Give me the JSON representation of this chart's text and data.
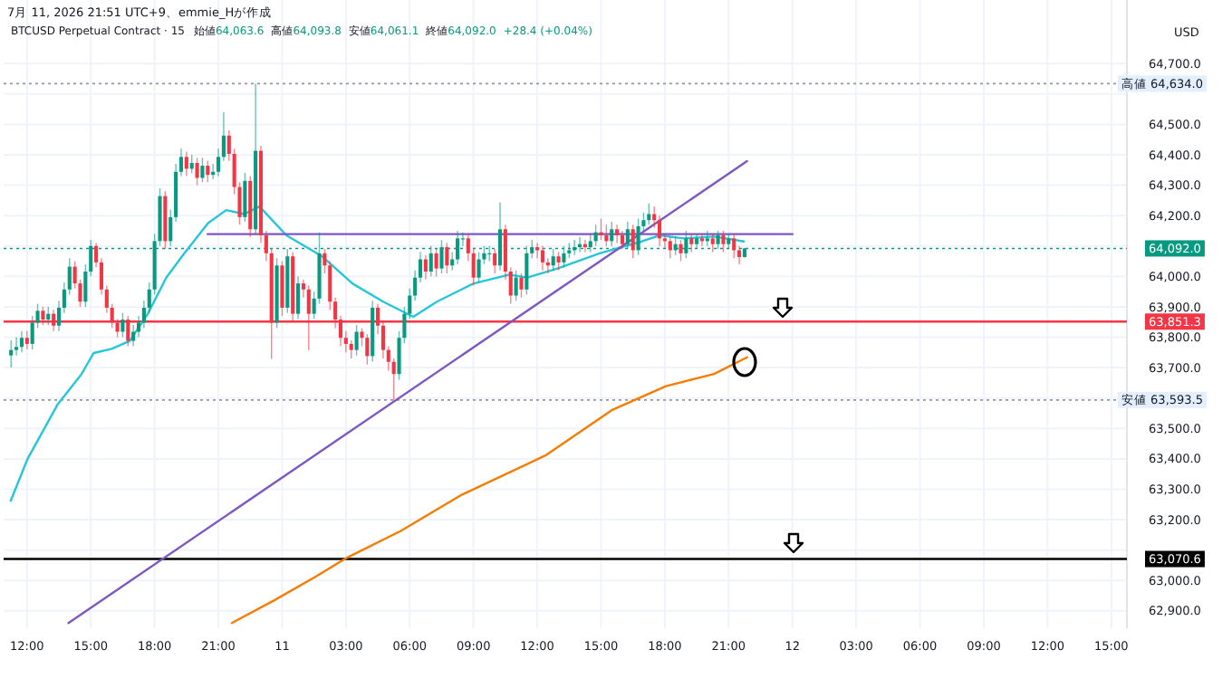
{
  "chart_data": {
    "type": "candlestick",
    "title": "7月 11, 2026 21:51 UTC+9、emmie_Hが作成",
    "subtitle": "BTCUSD Perpetual Contract · 15",
    "annotations": [
      "始値64,063.6",
      "高値64,093.8",
      "安値64,061.1",
      "終値64,092.0",
      "+28.4 (+0.04%)"
    ],
    "ylabel": "USD",
    "xlim": [
      "2026-07-10T10:54",
      "2026-07-12T15:44"
    ],
    "xticks": [
      {
        "value": "2026-07-10T12:00",
        "label": "12:00"
      },
      {
        "value": "2026-07-10T15:00",
        "label": "15:00"
      },
      {
        "value": "2026-07-10T18:00",
        "label": "18:00"
      },
      {
        "value": "2026-07-10T21:00",
        "label": "21:00"
      },
      {
        "value": "2026-07-11T00:00",
        "label": "11"
      },
      {
        "value": "2026-07-11T03:00",
        "label": "03:00"
      },
      {
        "value": "2026-07-11T06:00",
        "label": "06:00"
      },
      {
        "value": "2026-07-11T09:00",
        "label": "09:00"
      },
      {
        "value": "2026-07-11T12:00",
        "label": "12:00"
      },
      {
        "value": "2026-07-11T15:00",
        "label": "15:00"
      },
      {
        "value": "2026-07-11T18:00",
        "label": "18:00"
      },
      {
        "value": "2026-07-11T21:00",
        "label": "21:00"
      },
      {
        "value": "2026-07-12T00:00",
        "label": "12"
      },
      {
        "value": "2026-07-12T03:00",
        "label": "03:00"
      },
      {
        "value": "2026-07-12T06:00",
        "label": "06:00"
      },
      {
        "value": "2026-07-12T09:00",
        "label": "09:00"
      },
      {
        "value": "2026-07-12T12:00",
        "label": "12:00"
      },
      {
        "value": "2026-07-12T15:00",
        "label": "15:00"
      }
    ],
    "ylim": [
      62843,
      64909
    ],
    "yticks": [
      {
        "value": 62900,
        "label": "62,900.0"
      },
      {
        "value": 63000,
        "label": "63,000.0"
      },
      {
        "value": 63100,
        "label": null
      },
      {
        "value": 63200,
        "label": "63,200.0"
      },
      {
        "value": 63300,
        "label": "63,300.0"
      },
      {
        "value": 63400,
        "label": "63,400.0"
      },
      {
        "value": 63500,
        "label": "63,500.0"
      },
      {
        "value": 63600,
        "label": null
      },
      {
        "value": 63700,
        "label": "63,700.0"
      },
      {
        "value": 63800,
        "label": "63,800.0"
      },
      {
        "value": 63900,
        "label": "63,900.0"
      },
      {
        "value": 64000,
        "label": "64,000.0"
      },
      {
        "value": 64100,
        "label": null
      },
      {
        "value": 64200,
        "label": "64,200.0"
      },
      {
        "value": 64300,
        "label": "64,300.0"
      },
      {
        "value": 64400,
        "label": "64,400.0"
      },
      {
        "value": 64500,
        "label": "64,500.0"
      },
      {
        "value": 64600,
        "label": null
      },
      {
        "value": 64700,
        "label": "64,700.0"
      }
    ],
    "grid": true,
    "colors": [
      "#089981",
      "#089981",
      "#089981",
      "#f23645",
      "#089981",
      "#089981",
      "#f23645",
      "#089981",
      "#f23645",
      "#089981",
      "#089981",
      "#089981",
      "#f23645",
      "#f23645",
      "#089981",
      "#089981",
      "#f23645",
      "#f23645",
      "#f23645",
      "#f23645",
      "#f23645",
      "#089981",
      "#f23645",
      "#089981",
      "#089981",
      "#089981",
      "#089981",
      "#089981",
      "#089981",
      "#f23645",
      "#089981",
      "#089981",
      "#089981",
      "#f23645",
      "#089981",
      "#f23645",
      "#089981",
      "#f23645",
      "#089981",
      "#089981",
      "#089981",
      "#f23645",
      "#f23645",
      "#f23645",
      "#089981",
      "#f23645",
      "#089981",
      "#f23645",
      "#f23645",
      "#f23645",
      "#089981",
      "#f23645",
      "#089981",
      "#f23645",
      "#089981",
      "#f23645",
      "#f23645",
      "#089981",
      "#089981",
      "#f23645",
      "#f23645",
      "#f23645",
      "#f23645",
      "#f23645",
      "#f23645",
      "#089981",
      "#f23645",
      "#f23645",
      "#089981",
      "#f23645",
      "#f23645",
      "#f23645",
      "#f23645",
      "#089981",
      "#089981",
      "#089981",
      "#089981",
      "#089981",
      "#f23645",
      "#089981",
      "#f23645",
      "#089981",
      "#f23645",
      "#089981",
      "#089981",
      "#089981",
      "#f23645",
      "#f23645",
      "#089981",
      "#089981",
      "#089981",
      "#f23645",
      "#089981",
      "#f23645",
      "#f23645",
      "#089981",
      "#f23645",
      "#089981",
      "#089981",
      "#f23645",
      "#f23645",
      "#f23645",
      "#089981",
      "#f23645",
      "#089981",
      "#089981",
      "#089981",
      "#089981",
      "#f23645",
      "#089981",
      "#089981",
      "#f23645",
      "#f23645",
      "#089981",
      "#f23645",
      "#f23645",
      "#089981",
      "#f23645",
      "#089981",
      "#089981",
      "#089981",
      "#f23645",
      "#f23645",
      "#f23645",
      "#f23645",
      "#089981",
      "#f23645",
      "#089981",
      "#f23645",
      "#089981",
      "#f23645",
      "#089981",
      "#f23645",
      "#089981",
      "#f23645",
      "#089981",
      "#f23645",
      "#f23645",
      "#089981"
    ],
    "x": [
      "2026-07-10T11:15",
      "2026-07-10T11:30",
      "2026-07-10T11:45",
      "2026-07-10T12:00",
      "2026-07-10T12:15",
      "2026-07-10T12:30",
      "2026-07-10T12:45",
      "2026-07-10T13:00",
      "2026-07-10T13:15",
      "2026-07-10T13:30",
      "2026-07-10T13:45",
      "2026-07-10T14:00",
      "2026-07-10T14:15",
      "2026-07-10T14:30",
      "2026-07-10T14:45",
      "2026-07-10T15:00",
      "2026-07-10T15:15",
      "2026-07-10T15:30",
      "2026-07-10T15:45",
      "2026-07-10T16:00",
      "2026-07-10T16:15",
      "2026-07-10T16:30",
      "2026-07-10T16:45",
      "2026-07-10T17:00",
      "2026-07-10T17:15",
      "2026-07-10T17:30",
      "2026-07-10T17:45",
      "2026-07-10T18:00",
      "2026-07-10T18:15",
      "2026-07-10T18:30",
      "2026-07-10T18:45",
      "2026-07-10T19:00",
      "2026-07-10T19:15",
      "2026-07-10T19:30",
      "2026-07-10T19:45",
      "2026-07-10T20:00",
      "2026-07-10T20:15",
      "2026-07-10T20:30",
      "2026-07-10T20:45",
      "2026-07-10T21:00",
      "2026-07-10T21:15",
      "2026-07-10T21:30",
      "2026-07-10T21:45",
      "2026-07-10T22:00",
      "2026-07-10T22:15",
      "2026-07-10T22:30",
      "2026-07-10T22:45",
      "2026-07-10T23:00",
      "2026-07-10T23:15",
      "2026-07-10T23:30",
      "2026-07-10T23:45",
      "2026-07-11T00:00",
      "2026-07-11T00:15",
      "2026-07-11T00:30",
      "2026-07-11T00:45",
      "2026-07-11T01:00",
      "2026-07-11T01:15",
      "2026-07-11T01:30",
      "2026-07-11T01:45",
      "2026-07-11T02:00",
      "2026-07-11T02:15",
      "2026-07-11T02:30",
      "2026-07-11T02:45",
      "2026-07-11T03:00",
      "2026-07-11T03:15",
      "2026-07-11T03:30",
      "2026-07-11T03:45",
      "2026-07-11T04:00",
      "2026-07-11T04:15",
      "2026-07-11T04:30",
      "2026-07-11T04:45",
      "2026-07-11T05:00",
      "2026-07-11T05:15",
      "2026-07-11T05:30",
      "2026-07-11T05:45",
      "2026-07-11T06:00",
      "2026-07-11T06:15",
      "2026-07-11T06:30",
      "2026-07-11T06:45",
      "2026-07-11T07:00",
      "2026-07-11T07:15",
      "2026-07-11T07:30",
      "2026-07-11T07:45",
      "2026-07-11T08:00",
      "2026-07-11T08:15",
      "2026-07-11T08:30",
      "2026-07-11T08:45",
      "2026-07-11T09:00",
      "2026-07-11T09:15",
      "2026-07-11T09:30",
      "2026-07-11T09:45",
      "2026-07-11T10:00",
      "2026-07-11T10:15",
      "2026-07-11T10:30",
      "2026-07-11T10:45",
      "2026-07-11T11:00",
      "2026-07-11T11:15",
      "2026-07-11T11:30",
      "2026-07-11T11:45",
      "2026-07-11T12:00",
      "2026-07-11T12:15",
      "2026-07-11T12:30",
      "2026-07-11T12:45",
      "2026-07-11T13:00",
      "2026-07-11T13:15",
      "2026-07-11T13:30",
      "2026-07-11T13:45",
      "2026-07-11T14:00",
      "2026-07-11T14:15",
      "2026-07-11T14:30",
      "2026-07-11T14:45",
      "2026-07-11T15:00",
      "2026-07-11T15:15",
      "2026-07-11T15:30",
      "2026-07-11T15:45",
      "2026-07-11T16:00",
      "2026-07-11T16:15",
      "2026-07-11T16:30",
      "2026-07-11T16:45",
      "2026-07-11T17:00",
      "2026-07-11T17:15",
      "2026-07-11T17:30",
      "2026-07-11T17:45",
      "2026-07-11T18:00",
      "2026-07-11T18:15",
      "2026-07-11T18:30",
      "2026-07-11T18:45",
      "2026-07-11T19:00",
      "2026-07-11T19:15",
      "2026-07-11T19:30",
      "2026-07-11T19:45",
      "2026-07-11T20:00",
      "2026-07-11T20:15",
      "2026-07-11T20:30",
      "2026-07-11T20:45",
      "2026-07-11T21:00",
      "2026-07-11T21:15",
      "2026-07-11T21:30",
      "2026-07-11T21:45"
    ],
    "ohlc": [
      [
        63740,
        63790,
        63700,
        63758
      ],
      [
        63758,
        63800,
        63740,
        63768
      ],
      [
        63768,
        63820,
        63750,
        63798
      ],
      [
        63798,
        63820,
        63760,
        63778
      ],
      [
        63778,
        63870,
        63760,
        63848
      ],
      [
        63848,
        63910,
        63830,
        63887
      ],
      [
        63887,
        63900,
        63840,
        63858
      ],
      [
        63858,
        63900,
        63840,
        63877
      ],
      [
        63877,
        63890,
        63820,
        63838
      ],
      [
        63838,
        63920,
        63820,
        63897
      ],
      [
        63897,
        63980,
        63880,
        63957
      ],
      [
        63957,
        64060,
        63940,
        64032
      ],
      [
        64032,
        64050,
        63960,
        63977
      ],
      [
        63977,
        63990,
        63900,
        63917
      ],
      [
        63917,
        64040,
        63900,
        64016
      ],
      [
        64016,
        64120,
        64000,
        64100
      ],
      [
        64100,
        64110,
        64030,
        64046
      ],
      [
        64046,
        64060,
        63940,
        63957
      ],
      [
        63957,
        63970,
        63880,
        63897
      ],
      [
        63897,
        63910,
        63830,
        63848
      ],
      [
        63848,
        63860,
        63800,
        63818
      ],
      [
        63818,
        63880,
        63800,
        63858
      ],
      [
        63858,
        63870,
        63770,
        63788
      ],
      [
        63788,
        63840,
        63770,
        63818
      ],
      [
        63818,
        63870,
        63800,
        63848
      ],
      [
        63848,
        63920,
        63830,
        63897
      ],
      [
        63897,
        63980,
        63880,
        63957
      ],
      [
        63957,
        64140,
        63940,
        64116
      ],
      [
        64116,
        64290,
        64100,
        64264
      ],
      [
        64264,
        64280,
        64090,
        64116
      ],
      [
        64116,
        64220,
        64100,
        64195
      ],
      [
        64195,
        64370,
        64180,
        64344
      ],
      [
        64344,
        64420,
        64330,
        64393
      ],
      [
        64393,
        64410,
        64330,
        64354
      ],
      [
        64354,
        64400,
        64340,
        64373
      ],
      [
        64373,
        64390,
        64300,
        64324
      ],
      [
        64324,
        64390,
        64310,
        64364
      ],
      [
        64364,
        64380,
        64310,
        64334
      ],
      [
        64334,
        64370,
        64320,
        64344
      ],
      [
        64344,
        64420,
        64330,
        64393
      ],
      [
        64393,
        64540,
        64380,
        64463
      ],
      [
        64463,
        64480,
        64380,
        64403
      ],
      [
        64403,
        64420,
        64270,
        64294
      ],
      [
        64294,
        64310,
        64170,
        64195
      ],
      [
        64195,
        64340,
        64180,
        64314
      ],
      [
        64314,
        64330,
        64130,
        64155
      ],
      [
        64155,
        64634,
        64140,
        64413
      ],
      [
        64413,
        64430,
        64110,
        64135
      ],
      [
        64135,
        64150,
        64050,
        64076
      ],
      [
        64076,
        64090,
        63729,
        63848
      ],
      [
        63848,
        64060,
        63830,
        64036
      ],
      [
        64036,
        64050,
        63870,
        63897
      ],
      [
        63897,
        64090,
        63880,
        64066
      ],
      [
        64066,
        64080,
        63850,
        63877
      ],
      [
        63877,
        64000,
        63860,
        63977
      ],
      [
        63977,
        63990,
        63930,
        63957
      ],
      [
        63957,
        63970,
        63758,
        63877
      ],
      [
        63877,
        63950,
        63860,
        63927
      ],
      [
        63927,
        64145,
        63910,
        64076
      ],
      [
        64076,
        64090,
        64010,
        64036
      ],
      [
        64036,
        64050,
        63890,
        63917
      ],
      [
        63917,
        63930,
        63830,
        63858
      ],
      [
        63858,
        63870,
        63770,
        63798
      ],
      [
        63798,
        63820,
        63750,
        63778
      ],
      [
        63778,
        63790,
        63730,
        63758
      ],
      [
        63758,
        63840,
        63740,
        63818
      ],
      [
        63818,
        63830,
        63770,
        63798
      ],
      [
        63798,
        63810,
        63710,
        63738
      ],
      [
        63738,
        63920,
        63720,
        63897
      ],
      [
        63897,
        63910,
        63810,
        63838
      ],
      [
        63838,
        63850,
        63730,
        63758
      ],
      [
        63758,
        63770,
        63690,
        63719
      ],
      [
        63719,
        63730,
        63593.5,
        63679
      ],
      [
        63679,
        63820,
        63660,
        63798
      ],
      [
        63798,
        63900,
        63780,
        63877
      ],
      [
        63877,
        63960,
        63860,
        63937
      ],
      [
        63937,
        64020,
        63920,
        63996
      ],
      [
        63996,
        64080,
        63980,
        64056
      ],
      [
        64056,
        64070,
        63990,
        64016
      ],
      [
        64016,
        64100,
        64000,
        64076
      ],
      [
        64076,
        64090,
        64000,
        64026
      ],
      [
        64026,
        64120,
        64010,
        64096
      ],
      [
        64096,
        64110,
        64010,
        64036
      ],
      [
        64036,
        64080,
        64020,
        64056
      ],
      [
        64056,
        64150,
        64040,
        64125
      ],
      [
        64125,
        64145,
        64100,
        64125
      ],
      [
        64125,
        64140,
        64050,
        64076
      ],
      [
        64076,
        64090,
        63970,
        63996
      ],
      [
        63996,
        64080,
        63980,
        64056
      ],
      [
        64056,
        64100,
        64040,
        64076
      ],
      [
        64076,
        64100,
        64050,
        64076
      ],
      [
        64076,
        64090,
        64010,
        64036
      ],
      [
        64036,
        64244,
        64020,
        64155
      ],
      [
        64155,
        64170,
        63990,
        64016
      ],
      [
        64016,
        64030,
        63910,
        63937
      ],
      [
        63937,
        64020,
        63920,
        63996
      ],
      [
        63996,
        64010,
        63930,
        63957
      ],
      [
        63957,
        64100,
        63940,
        64076
      ],
      [
        64076,
        64120,
        64060,
        64096
      ],
      [
        64096,
        64110,
        64060,
        64086
      ],
      [
        64086,
        64100,
        64020,
        64046
      ],
      [
        64046,
        64060,
        64010,
        64036
      ],
      [
        64036,
        64090,
        64020,
        64066
      ],
      [
        64066,
        64080,
        64020,
        64046
      ],
      [
        64046,
        64100,
        64030,
        64076
      ],
      [
        64076,
        64110,
        64060,
        64086
      ],
      [
        64086,
        64120,
        64070,
        64096
      ],
      [
        64096,
        64130,
        64080,
        64106
      ],
      [
        64106,
        64120,
        64080,
        64096
      ],
      [
        64096,
        64140,
        64080,
        64116
      ],
      [
        64116,
        64170,
        64100,
        64145
      ],
      [
        64145,
        64190,
        64120,
        64135
      ],
      [
        64135,
        64170,
        64100,
        64116
      ],
      [
        64116,
        64180,
        64100,
        64155
      ],
      [
        64155,
        64170,
        64110,
        64135
      ],
      [
        64135,
        64150,
        64090,
        64106
      ],
      [
        64106,
        64180,
        64090,
        64155
      ],
      [
        64155,
        64170,
        64060,
        64086
      ],
      [
        64086,
        64190,
        64070,
        64165
      ],
      [
        64165,
        64210,
        64150,
        64185
      ],
      [
        64185,
        64240,
        64170,
        64205
      ],
      [
        64205,
        64230,
        64160,
        64185
      ],
      [
        64185,
        64200,
        64100,
        64125
      ],
      [
        64125,
        64140,
        64090,
        64116
      ],
      [
        64116,
        64130,
        64060,
        64086
      ],
      [
        64086,
        64130,
        64070,
        64106
      ],
      [
        64106,
        64120,
        64050,
        64076
      ],
      [
        64076,
        64150,
        64060,
        64125
      ],
      [
        64125,
        64140,
        64080,
        64106
      ],
      [
        64106,
        64140,
        64090,
        64125
      ],
      [
        64125,
        64140,
        64100,
        64116
      ],
      [
        64116,
        64150,
        64100,
        64125
      ],
      [
        64125,
        64140,
        64080,
        64106
      ],
      [
        64106,
        64150,
        64090,
        64135
      ],
      [
        64135,
        64150,
        64080,
        64106
      ],
      [
        64106,
        64140,
        64090,
        64125
      ],
      [
        64125,
        64140,
        64060,
        64086
      ],
      [
        64086,
        64100,
        64040,
        64063.6
      ],
      [
        64063.6,
        64093.8,
        64061.1,
        64092.0
      ]
    ],
    "series": [
      {
        "type": "line",
        "color": "#26c6da",
        "x": [
          "2026-07-10T11:14",
          "2026-07-10T12:02",
          "2026-07-10T13:27",
          "2026-07-10T14:34",
          "2026-07-10T15:08",
          "2026-07-10T15:59",
          "2026-07-10T16:50",
          "2026-07-10T17:41",
          "2026-07-10T18:33",
          "2026-07-10T19:24",
          "2026-07-10T20:31",
          "2026-07-10T21:22",
          "2026-07-10T22:13",
          "2026-07-10T22:56",
          "2026-07-11T00:12",
          "2026-07-11T01:54",
          "2026-07-11T03:19",
          "2026-07-11T04:45",
          "2026-07-11T06:10",
          "2026-07-11T07:17",
          "2026-07-11T08:59",
          "2026-07-11T10:41",
          "2026-07-11T11:32",
          "2026-07-11T12:57",
          "2026-07-11T14:56",
          "2026-07-11T16:55",
          "2026-07-11T17:46",
          "2026-07-11T18:54",
          "2026-07-11T20:19",
          "2026-07-11T21:43"
        ],
        "values": [
          63262,
          63401,
          63580,
          63679,
          63748,
          63762,
          63788,
          63877,
          63996,
          64076,
          64175,
          64218,
          64205,
          64230,
          64135,
          64065,
          63976,
          63917,
          63867,
          63917,
          63976,
          64006,
          63996,
          64026,
          64076,
          64115,
          64135,
          64125,
          64131,
          64115
        ]
      },
      {
        "type": "line",
        "color": "#f57c00",
        "x": [
          "2026-07-10T21:38",
          "2026-07-10T23:38",
          "2026-07-11T01:37",
          "2026-07-11T03:03",
          "2026-07-11T05:35",
          "2026-07-11T08:27",
          "2026-07-11T12:23",
          "2026-07-11T15:30",
          "2026-07-11T18:03",
          "2026-07-11T20:19",
          "2026-07-11T21:52"
        ],
        "values": [
          62860,
          62935,
          63014,
          63075,
          63163,
          63282,
          63411,
          63560,
          63639,
          63679,
          63734
        ]
      },
      {
        "type": "line",
        "color": "#7e57c2",
        "x": [
          "2026-07-10T13:57",
          "2026-07-11T21:52"
        ],
        "values": [
          62860,
          64379
        ]
      },
      {
        "type": "line",
        "color": "#7e57c2",
        "x": [
          "2026-07-10T20:30",
          "2026-07-12T00:00"
        ],
        "values": [
          64139,
          64139
        ]
      }
    ],
    "ref_lines": [
      {
        "axis": "y",
        "value": 63851.3,
        "label": "63,851.3",
        "color": "#f23645"
      },
      {
        "axis": "y",
        "value": 63070.6,
        "label": "63,070.6",
        "color": "#000000"
      },
      {
        "axis": "y",
        "value": 64092.0,
        "label": "64,092.0",
        "color": "#089981",
        "line_style": "dotted"
      },
      {
        "axis": "y",
        "value": 64634.0,
        "label": "高値 64,634.0",
        "color": "#9598a1",
        "line_style": "dotted"
      },
      {
        "axis": "y",
        "value": 63593.5,
        "label": "安値 63,593.5",
        "color": "#9598a1",
        "line_style": "dotted"
      }
    ]
  }
}
